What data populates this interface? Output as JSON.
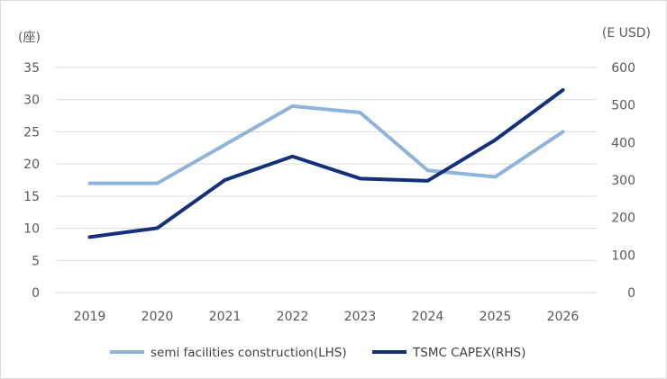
{
  "chart_data": {
    "type": "line",
    "title": "",
    "x": [
      "2019",
      "2020",
      "2021",
      "2022",
      "2023",
      "2024",
      "2025",
      "2026"
    ],
    "y_left": {
      "label": "(座)",
      "lim": [
        0,
        35
      ],
      "ticks": [
        "0",
        "5",
        "10",
        "15",
        "20",
        "25",
        "30",
        "35"
      ]
    },
    "y_right": {
      "label": "(E USD)",
      "lim": [
        0,
        600
      ],
      "ticks": [
        "0",
        "100",
        "200",
        "300",
        "400",
        "500",
        "600"
      ]
    },
    "grid": true,
    "legend_position": "bottom",
    "series": [
      {
        "name": "semi facilities construction(LHS)",
        "axis": "left",
        "color": "#8fb4d9",
        "values": [
          17,
          17,
          23,
          29,
          28,
          19,
          18,
          25
        ]
      },
      {
        "name": "TSMC CAPEX(RHS)",
        "axis": "right",
        "color": "#13307a",
        "values": [
          148,
          172,
          300,
          363,
          304,
          298,
          407,
          540
        ]
      }
    ]
  }
}
